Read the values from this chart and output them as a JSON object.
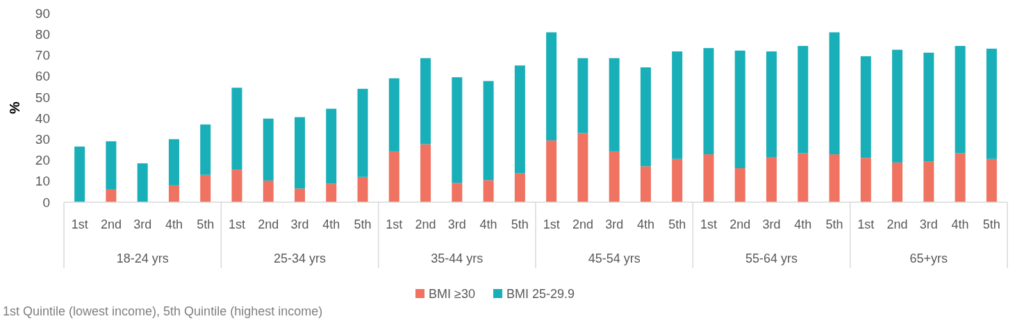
{
  "chart_data": {
    "type": "bar",
    "stacked": true,
    "ylabel": "%",
    "ylim": [
      0,
      90
    ],
    "yticks": [
      0,
      10,
      20,
      30,
      40,
      50,
      60,
      70,
      80,
      90
    ],
    "grid": false,
    "legend": "bottom",
    "categories": [
      "1st",
      "2nd",
      "3rd",
      "4th",
      "5th",
      "1st",
      "2nd",
      "3rd",
      "4th",
      "5th",
      "1st",
      "2nd",
      "3rd",
      "4th",
      "5th",
      "1st",
      "2nd",
      "3rd",
      "4th",
      "5th",
      "1st",
      "2nd",
      "3rd",
      "4th",
      "5th",
      "1st",
      "2nd",
      "3rd",
      "4th",
      "5th"
    ],
    "series": [
      {
        "name": "BMI ≥30",
        "color": "#f07260",
        "values": [
          0,
          6,
          0,
          8,
          13,
          15.5,
          10.3,
          6.5,
          8.8,
          12,
          24.2,
          27.6,
          9.2,
          10.5,
          13.7,
          29.4,
          32.9,
          24.2,
          17.1,
          20.6,
          22.8,
          16.2,
          21.5,
          23.3,
          22.8,
          21.1,
          18.9,
          19.3,
          23.3,
          20.6
        ]
      },
      {
        "name": "BMI 25-29.9",
        "color": "#19afb8",
        "values": [
          26.5,
          23,
          18.5,
          22,
          24,
          39,
          29.5,
          34,
          35.7,
          42,
          34.8,
          41,
          50.3,
          47.2,
          51.4,
          51.5,
          35.7,
          44.4,
          47.1,
          51.2,
          50.6,
          56,
          50.3,
          51.1,
          58.1,
          48.4,
          53.7,
          51.9,
          51.1,
          52.5
        ]
      }
    ],
    "annotations": [
      "18-24 yrs",
      "25-34 yrs",
      "35-44 yrs",
      "45-54 yrs",
      "55-64 yrs",
      "65+yrs",
      "1st Quintile (lowest income), 5th Quintile (highest income)"
    ]
  }
}
